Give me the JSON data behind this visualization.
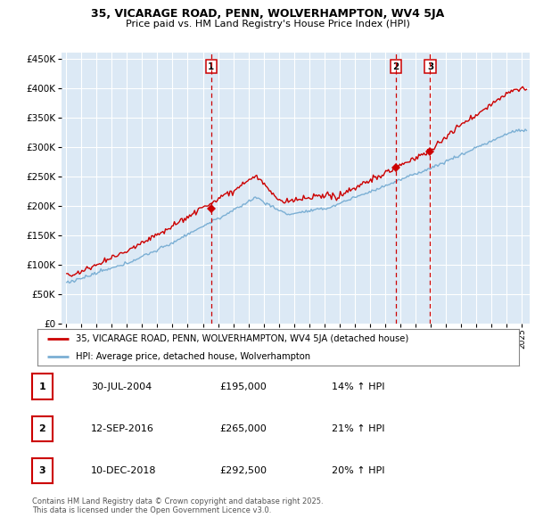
{
  "title_line1": "35, VICARAGE ROAD, PENN, WOLVERHAMPTON, WV4 5JA",
  "title_line2": "Price paid vs. HM Land Registry's House Price Index (HPI)",
  "legend_property": "35, VICARAGE ROAD, PENN, WOLVERHAMPTON, WV4 5JA (detached house)",
  "legend_hpi": "HPI: Average price, detached house, Wolverhampton",
  "sale_events": [
    {
      "num": 1,
      "date_label": "30-JUL-2004",
      "price": 195000,
      "pct_label": "14% ↑ HPI",
      "year": 2004,
      "month": 7
    },
    {
      "num": 2,
      "date_label": "12-SEP-2016",
      "price": 265000,
      "pct_label": "21% ↑ HPI",
      "year": 2016,
      "month": 9
    },
    {
      "num": 3,
      "date_label": "10-DEC-2018",
      "price": 292500,
      "pct_label": "20% ↑ HPI",
      "year": 2018,
      "month": 12
    }
  ],
  "footer": "Contains HM Land Registry data © Crown copyright and database right 2025.\nThis data is licensed under the Open Government Licence v3.0.",
  "plot_bg": "#dce9f5",
  "grid_color": "#ffffff",
  "red_line_color": "#cc0000",
  "blue_line_color": "#7bafd4",
  "marker_color": "#cc0000",
  "vline_color": "#cc0000",
  "ylim": [
    0,
    460000
  ],
  "yticks": [
    0,
    50000,
    100000,
    150000,
    200000,
    250000,
    300000,
    350000,
    400000,
    450000
  ],
  "xlim_start": 1994.7,
  "xlim_end": 2025.5
}
